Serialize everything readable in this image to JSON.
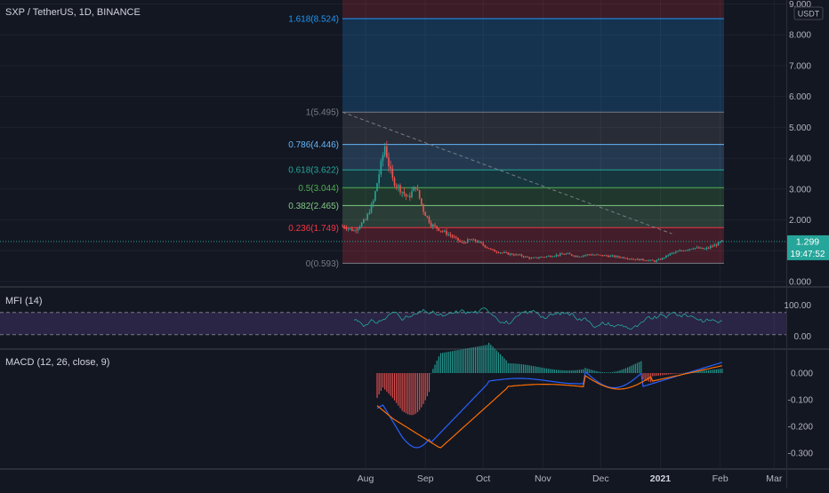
{
  "symbol_header": "SXP / TetherUS, 1D, BINANCE",
  "price_axis": {
    "currency": "USDT",
    "ticks": [
      "9.000",
      "8.000",
      "7.000",
      "6.000",
      "5.000",
      "4.000",
      "3.000",
      "2.000",
      "1.000",
      "0.000"
    ]
  },
  "last_price": {
    "value": 1.299,
    "label": "1.299",
    "countdown": "19:47:52",
    "color": "#26a69a"
  },
  "time_axis": {
    "labels": [
      {
        "text": "Aug",
        "day": 6,
        "bold": false
      },
      {
        "text": "Sep",
        "day": 37,
        "bold": false
      },
      {
        "text": "Oct",
        "day": 67,
        "bold": false
      },
      {
        "text": "Nov",
        "day": 98,
        "bold": false
      },
      {
        "text": "Dec",
        "day": 128,
        "bold": false
      },
      {
        "text": "2021",
        "day": 159,
        "bold": true
      },
      {
        "text": "Feb",
        "day": 190,
        "bold": false
      },
      {
        "text": "Mar",
        "day": 218,
        "bold": false
      }
    ]
  },
  "fib": {
    "start_day": -6,
    "end_day": 192,
    "levels": [
      {
        "label": "1.618(8.524)",
        "ratio": 1.618,
        "price": 8.524,
        "color": "#2196f3"
      },
      {
        "label": "1(5.495)",
        "ratio": 1,
        "price": 5.495,
        "color": "#787b86"
      },
      {
        "label": "0.786(4.446)",
        "ratio": 0.786,
        "price": 4.446,
        "color": "#64b5f6"
      },
      {
        "label": "0.618(3.622)",
        "ratio": 0.618,
        "price": 3.622,
        "color": "#26a69a"
      },
      {
        "label": "0.5(3.044)",
        "ratio": 0.5,
        "price": 3.044,
        "color": "#4caf50"
      },
      {
        "label": "0.382(2.465)",
        "ratio": 0.382,
        "price": 2.465,
        "color": "#81c784"
      },
      {
        "label": "0.236(1.749)",
        "ratio": 0.236,
        "price": 1.749,
        "color": "#f23645"
      },
      {
        "label": "0(0.593)",
        "ratio": 0,
        "price": 0.593,
        "color": "#787b86"
      }
    ]
  },
  "mfi": {
    "label": "MFI (14)",
    "upper": 80,
    "lower": 20,
    "ticks": [
      "100.00",
      "0.00"
    ],
    "color": "#7e57c2"
  },
  "macd": {
    "label": "MACD (12, 26, close, 9)",
    "ticks": [
      "0.000",
      "-0.100",
      "-0.200",
      "-0.300"
    ],
    "macd_color": "#2962ff",
    "signal_color": "#ff6d00",
    "hist_up_color": "#26a69a",
    "hist_down_color": "#ef5350"
  },
  "chart_data": {
    "type": "line",
    "title": "SXP / TetherUS, 1D, BINANCE",
    "x_unit": "days from Aug 1, 2020",
    "series": [
      {
        "x": [
          -6,
          0,
          6,
          10,
          14,
          16,
          18,
          20,
          24,
          28,
          32,
          36,
          40,
          44,
          50,
          56,
          60,
          64,
          68,
          72,
          76,
          80,
          86,
          92,
          98,
          104,
          110,
          116,
          122,
          128,
          134,
          140,
          146,
          152,
          156,
          160,
          164,
          170,
          176,
          182,
          188,
          191
        ],
        "close": [
          1.8,
          1.65,
          2.0,
          2.6,
          3.8,
          4.4,
          3.8,
          3.3,
          3.0,
          2.7,
          3.1,
          2.3,
          1.85,
          1.7,
          1.5,
          1.25,
          1.35,
          1.3,
          1.15,
          1.0,
          0.95,
          0.9,
          0.85,
          0.75,
          0.8,
          0.85,
          0.9,
          0.82,
          0.88,
          0.85,
          0.82,
          0.78,
          0.72,
          0.7,
          0.66,
          0.75,
          0.9,
          1.0,
          1.1,
          1.05,
          1.2,
          1.3
        ]
      }
    ],
    "ylim": [
      0,
      9
    ]
  }
}
